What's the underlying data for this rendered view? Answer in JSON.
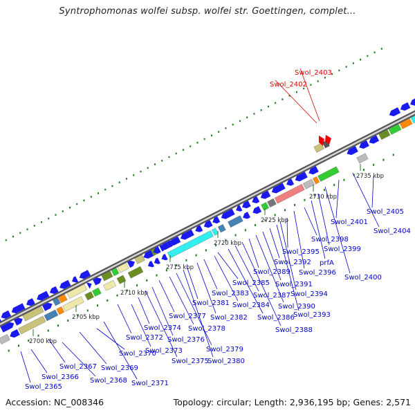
{
  "title": "Syntrophomonas wolfei subsp. wolfei str. Goettingen, complet...",
  "footer": {
    "accession": "Accession: NC_008346",
    "summary": "Topology: circular; Length: 2,936,195 bp; Genes: 2,571"
  },
  "colors": {
    "backbone": "#8c8c8c",
    "tick": "#1f7a1f",
    "label_normal": "#0000cc",
    "label_highlight": "#dd0000",
    "gene_blue": "#1a1aee",
    "gene_cyan": "#33eeee",
    "gene_olive": "#6b8e23",
    "gene_green": "#33cc33",
    "gene_khaki": "#c8c27a",
    "gene_cream": "#eee8aa",
    "gene_pink": "#f08080",
    "gene_orange": "#ff8c00",
    "gene_grey": "#bbbbbb",
    "gene_steel": "#4682b4",
    "gene_red": "#ee0000"
  },
  "kbp_labels": [
    "2700 kbp",
    "2705 kbp",
    "2710 kbp",
    "2715 kbp",
    "2720 kbp",
    "2725 kbp",
    "2730 kbp",
    "2735 kbp"
  ],
  "gene_labels": [
    {
      "text": "Swol_2365",
      "highlight": false
    },
    {
      "text": "Swol_2366",
      "highlight": false
    },
    {
      "text": "Swol_2367",
      "highlight": false
    },
    {
      "text": "Swol_2368",
      "highlight": false
    },
    {
      "text": "Swol_2369",
      "highlight": false
    },
    {
      "text": "Swol_2370",
      "highlight": false
    },
    {
      "text": "Swol_2371",
      "highlight": false
    },
    {
      "text": "Swol_2372",
      "highlight": false
    },
    {
      "text": "Swol_2373",
      "highlight": false
    },
    {
      "text": "Swol_2374",
      "highlight": false
    },
    {
      "text": "Swol_2375",
      "highlight": false
    },
    {
      "text": "Swol_2376",
      "highlight": false
    },
    {
      "text": "Swol_2377",
      "highlight": false
    },
    {
      "text": "Swol_2378",
      "highlight": false
    },
    {
      "text": "Swol_2379",
      "highlight": false
    },
    {
      "text": "Swol_2380",
      "highlight": false
    },
    {
      "text": "Swol_2381",
      "highlight": false
    },
    {
      "text": "Swol_2382",
      "highlight": false
    },
    {
      "text": "Swol_2383",
      "highlight": false
    },
    {
      "text": "Swol_2384",
      "highlight": false
    },
    {
      "text": "Swol_2385",
      "highlight": false
    },
    {
      "text": "Swol_2386",
      "highlight": false
    },
    {
      "text": "Swol_2387",
      "highlight": false
    },
    {
      "text": "Swol_2388",
      "highlight": false
    },
    {
      "text": "Swol_2389",
      "highlight": false
    },
    {
      "text": "Swol_2390",
      "highlight": false
    },
    {
      "text": "Swol_2391",
      "highlight": false
    },
    {
      "text": "Swol_2392",
      "highlight": false
    },
    {
      "text": "Swol_2393",
      "highlight": false
    },
    {
      "text": "Swol_2394",
      "highlight": false
    },
    {
      "text": "Swol_2395",
      "highlight": false
    },
    {
      "text": "Swol_2396",
      "highlight": false
    },
    {
      "text": "Swol_2398",
      "highlight": false
    },
    {
      "text": "prfA",
      "highlight": false
    },
    {
      "text": "Swol_2399",
      "highlight": false
    },
    {
      "text": "Swol_2400",
      "highlight": false
    },
    {
      "text": "Swol_2401",
      "highlight": false
    },
    {
      "text": "Swol_2404",
      "highlight": false
    },
    {
      "text": "Swol_2405",
      "highlight": false
    },
    {
      "text": "Swol_2402",
      "highlight": true
    },
    {
      "text": "Swol_2403",
      "highlight": true
    }
  ]
}
